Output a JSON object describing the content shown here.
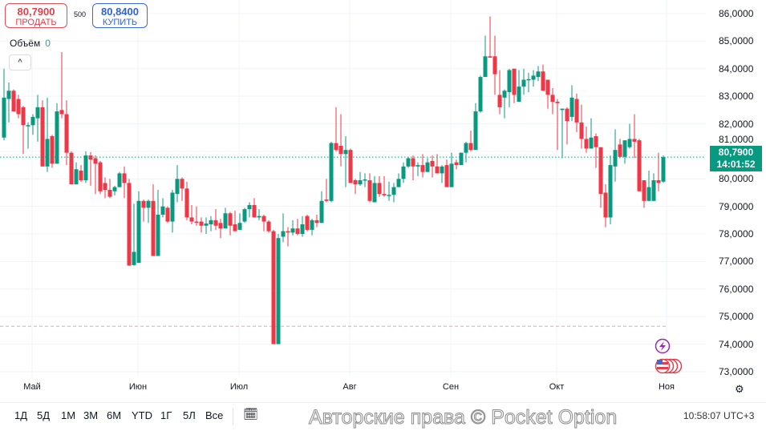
{
  "trade": {
    "sell_price": "80,7900",
    "sell_label": "ПРОДАТЬ",
    "quantity": "500",
    "buy_price": "80,8400",
    "buy_label": "КУПИТЬ"
  },
  "volume": {
    "label": "Объём",
    "value": "0"
  },
  "collapse_icon": "chevron-up-icon",
  "price_badge": {
    "price": "80,7900",
    "countdown": "14:01:52"
  },
  "colors": {
    "up": "#089981",
    "down": "#f23645",
    "badge": "#089981",
    "sell": "#e0404d",
    "buy": "#2f62d6"
  },
  "chart_data": {
    "type": "candlestick",
    "y_ticks": [
      "86,0000",
      "85,0000",
      "84,0000",
      "83,0000",
      "82,0000",
      "81,0000",
      "80,0000",
      "79,0000",
      "78,0000",
      "77,0000",
      "76,0000",
      "75,0000",
      "74,0000",
      "73,0000"
    ],
    "ylim": [
      72.8,
      86.3
    ],
    "x_ticks": [
      "Май",
      "Июн",
      "Июл",
      "Авг",
      "Сен",
      "Окт",
      "Ноя"
    ],
    "grid": true,
    "current_price": 80.79,
    "reference_line": 74.65,
    "ohlc": [
      [
        81.5,
        84.0,
        81.4,
        82.95
      ],
      [
        82.9,
        83.5,
        82.05,
        83.2
      ],
      [
        83.2,
        83.25,
        82.45,
        82.45
      ],
      [
        82.9,
        83.05,
        82.2,
        82.35
      ],
      [
        82.6,
        82.65,
        80.9,
        81.95
      ],
      [
        81.95,
        82.05,
        81.1,
        81.95
      ],
      [
        81.95,
        82.35,
        81.6,
        82.25
      ],
      [
        82.2,
        83.05,
        81.35,
        82.6
      ],
      [
        82.6,
        82.85,
        80.45,
        80.45
      ],
      [
        80.45,
        82.95,
        80.25,
        81.45
      ],
      [
        81.55,
        81.6,
        80.4,
        80.55
      ],
      [
        80.55,
        82.75,
        80.55,
        82.45
      ],
      [
        82.5,
        84.6,
        82.2,
        82.35
      ],
      [
        82.35,
        82.85,
        80.5,
        80.95
      ],
      [
        80.95,
        81.0,
        79.8,
        79.8
      ],
      [
        79.8,
        80.6,
        79.8,
        80.35
      ],
      [
        80.3,
        80.5,
        79.9,
        79.95
      ],
      [
        79.95,
        81.0,
        79.85,
        80.85
      ],
      [
        80.85,
        80.97,
        79.75,
        80.7
      ],
      [
        80.75,
        80.85,
        79.45,
        80.55
      ],
      [
        80.6,
        80.65,
        79.45,
        79.55
      ],
      [
        79.85,
        80.05,
        79.3,
        79.6
      ],
      [
        79.6,
        80.0,
        79.3,
        79.35
      ],
      [
        79.55,
        79.75,
        79.4,
        79.7
      ],
      [
        79.7,
        80.25,
        79.7,
        80.2
      ],
      [
        80.2,
        80.45,
        79.3,
        79.85
      ],
      [
        79.85,
        80.0,
        76.85,
        76.85
      ],
      [
        76.87,
        79.1,
        76.85,
        77.35
      ],
      [
        76.95,
        79.55,
        76.95,
        79.2
      ],
      [
        79.2,
        79.25,
        78.45,
        78.95
      ],
      [
        78.95,
        79.25,
        78.4,
        79.2
      ],
      [
        79.2,
        79.8,
        77.2,
        77.2
      ],
      [
        77.2,
        79.6,
        77.2,
        78.7
      ],
      [
        78.7,
        79.3,
        78.6,
        79.0
      ],
      [
        78.95,
        79.0,
        78.4,
        78.45
      ],
      [
        78.45,
        79.6,
        78.05,
        79.5
      ],
      [
        79.45,
        80.5,
        79.15,
        80.0
      ],
      [
        80.0,
        80.05,
        79.2,
        79.65
      ],
      [
        79.65,
        79.9,
        78.5,
        78.6
      ],
      [
        78.6,
        79.05,
        78.35,
        78.45
      ],
      [
        78.45,
        79.0,
        78.3,
        78.4
      ],
      [
        78.45,
        78.6,
        78.05,
        78.3
      ],
      [
        78.3,
        78.6,
        78.0,
        78.38
      ],
      [
        78.35,
        78.65,
        78.1,
        78.5
      ],
      [
        78.5,
        78.9,
        78.15,
        78.3
      ],
      [
        78.4,
        78.55,
        77.85,
        78.2
      ],
      [
        78.2,
        78.95,
        78.2,
        78.75
      ],
      [
        78.75,
        78.8,
        77.95,
        78.3
      ],
      [
        78.35,
        78.85,
        78.1,
        78.1
      ],
      [
        78.15,
        78.75,
        78.15,
        78.4
      ],
      [
        78.45,
        78.95,
        78.4,
        78.9
      ],
      [
        78.9,
        79.15,
        78.6,
        79.05
      ],
      [
        79.05,
        79.3,
        78.6,
        78.6
      ],
      [
        78.6,
        78.9,
        78.5,
        78.65
      ],
      [
        78.65,
        78.7,
        78.1,
        78.45
      ],
      [
        78.45,
        78.5,
        78.05,
        78.1
      ],
      [
        78.1,
        78.15,
        74.0,
        74.0
      ],
      [
        74.0,
        78.0,
        74.0,
        77.85
      ],
      [
        77.9,
        78.75,
        77.7,
        78.1
      ],
      [
        78.1,
        78.25,
        77.55,
        78.05
      ],
      [
        78.05,
        78.5,
        77.95,
        78.2
      ],
      [
        78.2,
        78.55,
        77.95,
        78.0
      ],
      [
        78.0,
        78.65,
        77.9,
        78.35
      ],
      [
        78.65,
        78.7,
        78.1,
        78.15
      ],
      [
        78.15,
        78.55,
        77.95,
        78.5
      ],
      [
        78.5,
        78.7,
        78.25,
        78.4
      ],
      [
        78.4,
        79.55,
        78.4,
        79.2
      ],
      [
        79.25,
        80.0,
        79.15,
        79.2
      ],
      [
        79.2,
        81.35,
        79.15,
        81.3
      ],
      [
        81.3,
        82.6,
        81.0,
        81.05
      ],
      [
        81.2,
        82.35,
        80.45,
        80.9
      ],
      [
        80.9,
        81.55,
        79.7,
        81.05
      ],
      [
        81.05,
        81.1,
        79.85,
        79.85
      ],
      [
        79.95,
        80.0,
        79.45,
        79.8
      ],
      [
        79.8,
        80.25,
        79.75,
        79.95
      ],
      [
        79.95,
        80.2,
        79.7,
        79.98
      ],
      [
        79.95,
        80.2,
        79.15,
        79.2
      ],
      [
        79.15,
        80.1,
        79.15,
        79.85
      ],
      [
        79.85,
        80.1,
        79.35,
        79.45
      ],
      [
        79.45,
        80.1,
        79.35,
        79.4
      ],
      [
        79.4,
        79.9,
        79.2,
        79.42
      ],
      [
        79.42,
        79.85,
        79.15,
        79.7
      ],
      [
        79.7,
        80.2,
        79.7,
        80.0
      ],
      [
        80.0,
        80.6,
        79.85,
        80.45
      ],
      [
        80.45,
        80.8,
        80.4,
        80.75
      ],
      [
        80.75,
        80.85,
        79.95,
        80.45
      ],
      [
        80.45,
        80.6,
        80.1,
        80.5
      ],
      [
        80.5,
        80.9,
        80.05,
        80.25
      ],
      [
        80.25,
        80.75,
        80.25,
        80.6
      ],
      [
        80.65,
        80.85,
        80.05,
        80.45
      ],
      [
        80.45,
        80.9,
        80.2,
        80.2
      ],
      [
        80.2,
        80.5,
        79.85,
        80.45
      ],
      [
        80.5,
        80.7,
        79.7,
        79.7
      ],
      [
        79.7,
        80.95,
        79.7,
        80.55
      ],
      [
        80.6,
        80.7,
        80.35,
        80.5
      ],
      [
        80.5,
        80.95,
        80.5,
        80.95
      ],
      [
        80.95,
        81.35,
        80.6,
        81.3
      ],
      [
        81.3,
        81.75,
        81.0,
        81.05
      ],
      [
        81.05,
        82.75,
        81.05,
        82.45
      ],
      [
        82.45,
        83.75,
        82.4,
        83.7
      ],
      [
        83.7,
        85.2,
        83.7,
        84.45
      ],
      [
        84.45,
        85.9,
        84.4,
        84.4
      ],
      [
        84.45,
        85.2,
        83.05,
        83.8
      ],
      [
        83.05,
        83.95,
        82.35,
        82.6
      ],
      [
        82.95,
        83.25,
        82.2,
        83.2
      ],
      [
        83.15,
        84.0,
        82.6,
        83.95
      ],
      [
        84.0,
        84.0,
        82.75,
        83.05
      ],
      [
        82.8,
        83.95,
        82.8,
        83.35
      ],
      [
        83.35,
        84.0,
        83.05,
        83.6
      ],
      [
        83.6,
        83.85,
        83.15,
        83.62
      ],
      [
        83.6,
        83.95,
        83.35,
        83.75
      ],
      [
        83.7,
        84.1,
        83.55,
        83.9
      ],
      [
        83.9,
        84.15,
        83.2,
        83.2
      ],
      [
        83.6,
        83.6,
        82.55,
        83.05
      ],
      [
        83.05,
        83.3,
        82.35,
        82.8
      ],
      [
        82.8,
        82.9,
        81.05,
        82.75
      ],
      [
        82.5,
        82.55,
        80.75,
        82.55
      ],
      [
        82.55,
        82.6,
        81.25,
        82.1
      ],
      [
        82.25,
        83.4,
        82.1,
        82.95
      ],
      [
        82.9,
        83.1,
        81.7,
        82.05
      ],
      [
        82.05,
        82.7,
        81.1,
        81.45
      ],
      [
        81.45,
        81.9,
        80.95,
        81.1
      ],
      [
        81.1,
        82.2,
        81.1,
        81.5
      ],
      [
        81.55,
        81.65,
        80.4,
        81.15
      ],
      [
        81.15,
        81.15,
        78.95,
        79.45
      ],
      [
        79.5,
        79.8,
        78.25,
        78.6
      ],
      [
        78.6,
        80.85,
        78.35,
        80.5
      ],
      [
        80.45,
        81.8,
        79.9,
        81.05
      ],
      [
        81.25,
        81.45,
        80.75,
        80.8
      ],
      [
        80.8,
        81.4,
        80.55,
        81.4
      ],
      [
        81.15,
        82.0,
        81.1,
        81.45
      ],
      [
        81.45,
        82.35,
        80.75,
        81.35
      ],
      [
        81.4,
        81.45,
        79.55,
        79.55
      ],
      [
        79.95,
        79.95,
        78.95,
        79.2
      ],
      [
        79.2,
        80.3,
        79.2,
        79.7
      ],
      [
        79.2,
        80.2,
        79.2,
        79.95
      ],
      [
        79.95,
        80.95,
        79.55,
        79.85
      ],
      [
        79.9,
        80.85,
        79.85,
        80.79
      ]
    ]
  },
  "event_icons": {
    "lightning": "lightning-icon",
    "flag": "us-flag-icon"
  },
  "settings_icon": "gear-icon",
  "toolbar": {
    "ranges": [
      "1Д",
      "5Д",
      "1М",
      "3М",
      "6М",
      "YTD",
      "1Г",
      "5Л",
      "Все"
    ],
    "calendar_icon": "calendar-goto-icon",
    "watermark": "Авторские права © Pocket Option",
    "clock": "10:58:07 UTC+3"
  }
}
